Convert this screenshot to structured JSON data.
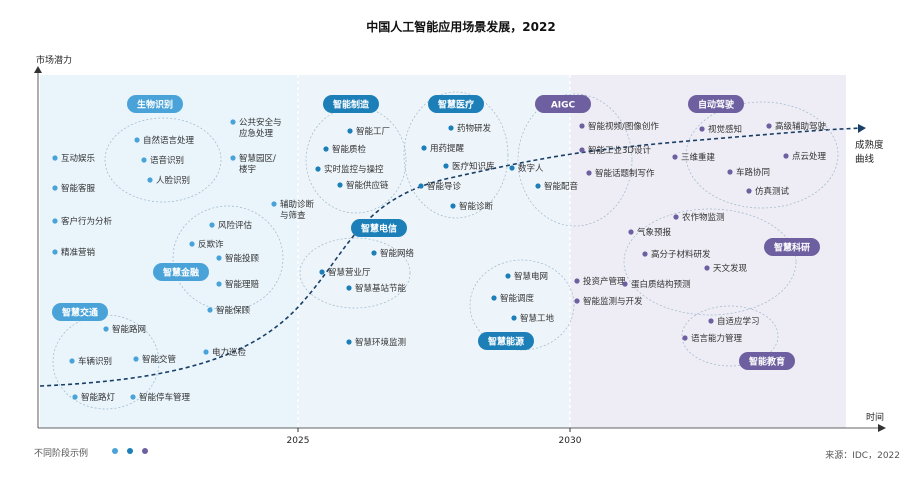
{
  "chart_data": {
    "type": "scatter",
    "title": "中国人工智能应用场景发展，2022",
    "ylabel": "市场潜力",
    "xlabel": "时间",
    "x_ticks": [
      "2025",
      "2030"
    ],
    "curve_label": "成熟度曲线",
    "stage_legend_label": "不同阶段示例",
    "source": "来源：IDC，2022",
    "stage_colors": [
      "#4aa3d8",
      "#1c7fb8",
      "#6d5fa0"
    ],
    "clusters": [
      {
        "name": "生物识别",
        "items": [
          "自然语言处理",
          "语音识别",
          "人脸识别"
        ]
      },
      {
        "name": "智慧交通",
        "items": [
          "智能路网",
          "车辆识别",
          "智能交管",
          "智能路灯",
          "智能停车管理"
        ]
      },
      {
        "name": "智慧金融",
        "items": [
          "风险评估",
          "反欺诈",
          "智能投顾",
          "智能理赔",
          "智能保顾"
        ]
      },
      {
        "name": "智能制造",
        "items": [
          "智能工厂",
          "智能质检",
          "实时监控与操控",
          "智能供应链"
        ]
      },
      {
        "name": "智慧医疗",
        "items": [
          "药物研发",
          "用药提醒",
          "医疗知识库",
          "智能导诊",
          "智能诊断"
        ]
      },
      {
        "name": "智慧电信",
        "items": [
          "智能网络",
          "智慧营业厅",
          "智慧基站节能"
        ]
      },
      {
        "name": "智慧能源",
        "items": [
          "智慧电网",
          "智能调度",
          "智慧工地"
        ]
      },
      {
        "name": "AIGC",
        "items": [
          "智能视频/图像创作",
          "智能工业3D设计",
          "智能话题制写作",
          "数字人",
          "智能配音"
        ]
      },
      {
        "name": "自动驾驶",
        "items": [
          "视觉感知",
          "高级辅助驾驶",
          "三维重建",
          "点云处理",
          "车路协同",
          "仿真测试"
        ]
      },
      {
        "name": "智慧科研",
        "items": [
          "农作物监测",
          "气象预报",
          "高分子材料研发",
          "天文发现",
          "蛋白质结构预测"
        ]
      },
      {
        "name": "智能教育",
        "items": [
          "自适应学习",
          "语言能力管理"
        ]
      }
    ],
    "standalone_items": [
      "互动娱乐",
      "智能客服",
      "客户行为分析",
      "精准营销",
      "公共安全与应急处理",
      "智慧园区/楼宇",
      "辅助诊断与筛查",
      "电力巡检",
      "智慧环境监测",
      "投资产管理",
      "智能监测与开发"
    ]
  }
}
